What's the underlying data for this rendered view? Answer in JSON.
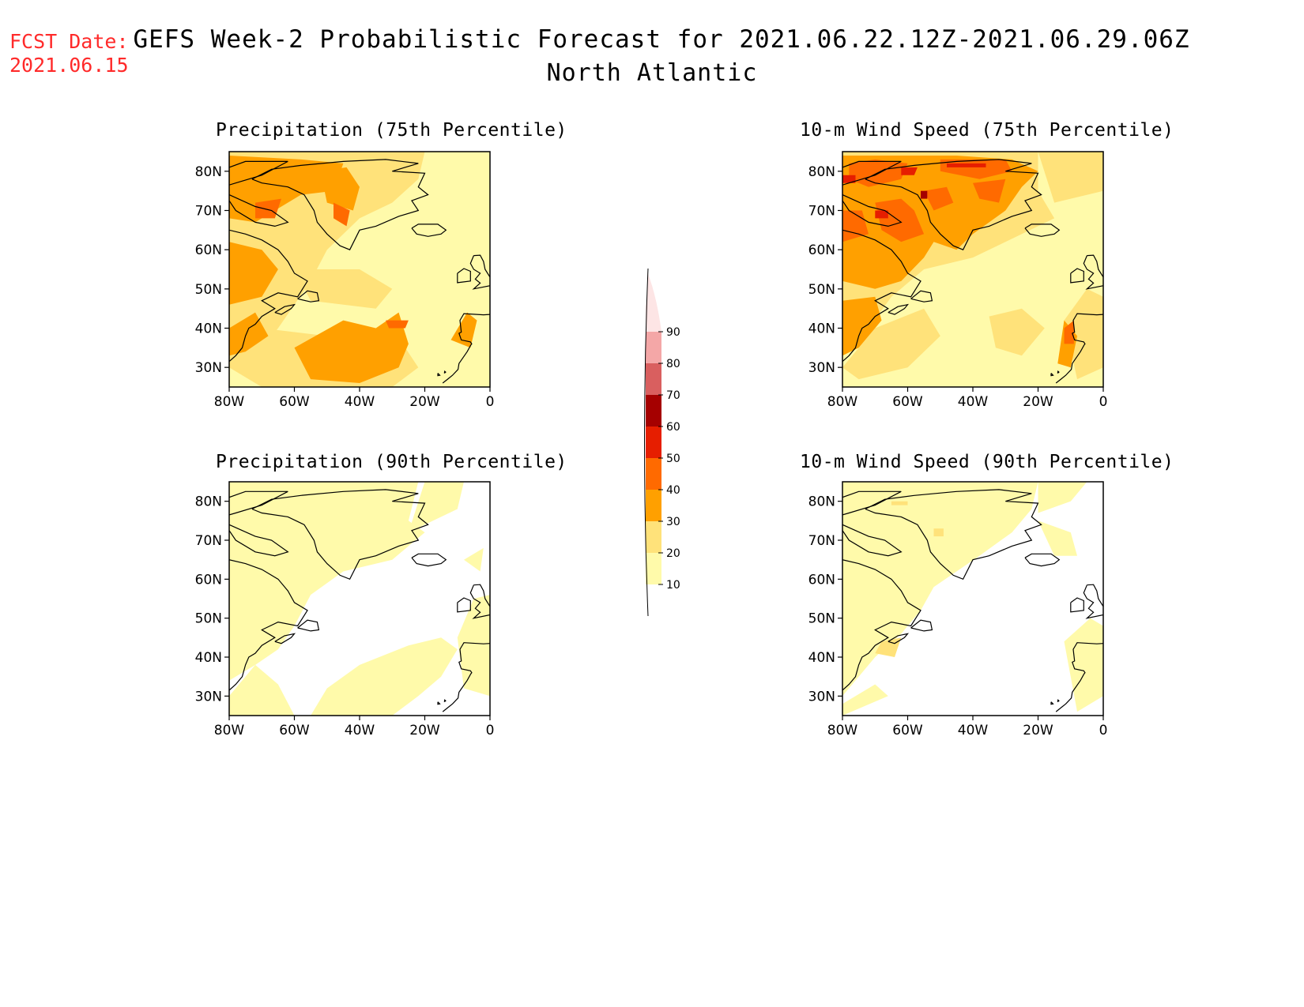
{
  "header": {
    "fcst_label": "FCST Date:",
    "fcst_date": "2021.06.15",
    "title": "GEFS Week-2 Probabilistic Forecast for 2021.06.22.12Z-2021.06.29.06Z",
    "subtitle": "North Atlantic"
  },
  "panels": [
    {
      "id": "precip75",
      "title": "Precipitation (75th Percentile)",
      "level": "high",
      "variable": "precipitation"
    },
    {
      "id": "wind75",
      "title": "10-m Wind Speed (75th Percentile)",
      "level": "highwind",
      "variable": "wind"
    },
    {
      "id": "precip90",
      "title": "Precipitation (90th Percentile)",
      "level": "low",
      "variable": "precipitation"
    },
    {
      "id": "wind90",
      "title": "10-m Wind Speed (90th Percentile)",
      "level": "lowwind",
      "variable": "wind"
    }
  ],
  "axes": {
    "lat_labels": [
      "80N",
      "70N",
      "60N",
      "50N",
      "40N",
      "30N"
    ],
    "lon_labels": [
      "80W",
      "60W",
      "40W",
      "20W",
      "0"
    ]
  },
  "colorbar": {
    "levels": [
      "10",
      "20",
      "30",
      "40",
      "50",
      "60",
      "70",
      "80",
      "90"
    ],
    "colors": [
      "#fffaaa",
      "#ffe27a",
      "#ffa000",
      "#ff6a00",
      "#e61e00",
      "#a50000",
      "#d95f5f",
      "#f4a7a7",
      "#fde5e5"
    ]
  }
}
